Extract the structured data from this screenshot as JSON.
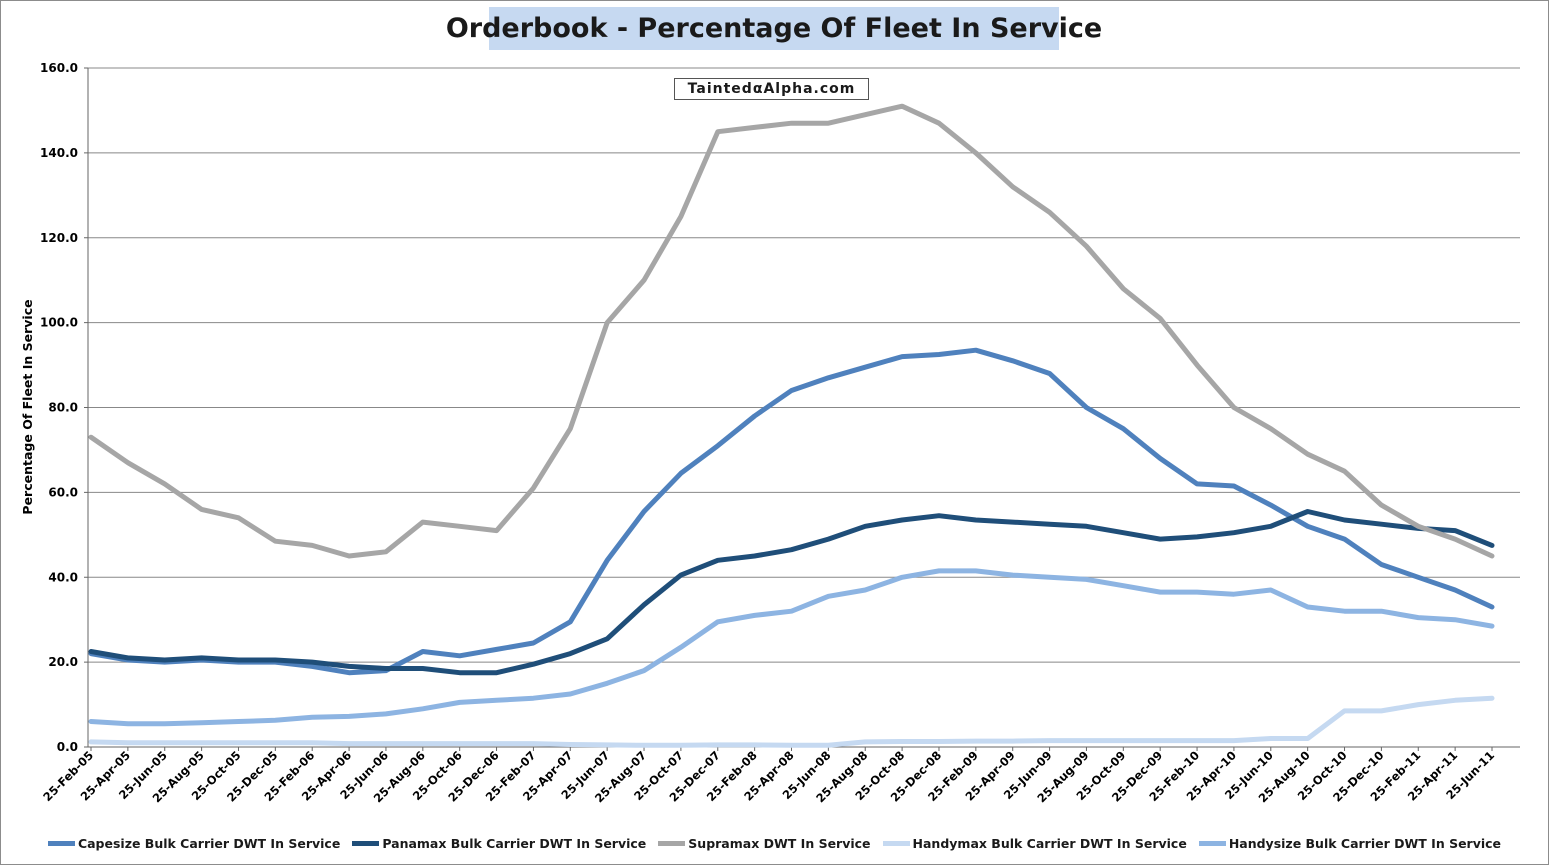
{
  "window": {
    "title": "Orderbook - Percentage Of Fleet In Service",
    "watermark": "TaintedαAlpha.com"
  },
  "chart_data": {
    "type": "line",
    "title": "Orderbook - Percentage Of Fleet In Service",
    "xlabel": "",
    "ylabel": "Percentage Of Fleet In Service",
    "ylim": [
      0,
      160
    ],
    "yticks": [
      "0.0",
      "20.0",
      "40.0",
      "60.0",
      "80.0",
      "100.0",
      "120.0",
      "140.0",
      "160.0"
    ],
    "categories": [
      "25-Feb-05",
      "25-Apr-05",
      "25-Jun-05",
      "25-Aug-05",
      "25-Oct-05",
      "25-Dec-05",
      "25-Feb-06",
      "25-Apr-06",
      "25-Jun-06",
      "25-Aug-06",
      "25-Oct-06",
      "25-Dec-06",
      "25-Feb-07",
      "25-Apr-07",
      "25-Jun-07",
      "25-Aug-07",
      "25-Oct-07",
      "25-Dec-07",
      "25-Feb-08",
      "25-Apr-08",
      "25-Jun-08",
      "25-Aug-08",
      "25-Oct-08",
      "25-Dec-08",
      "25-Feb-09",
      "25-Apr-09",
      "25-Jun-09",
      "25-Aug-09",
      "25-Oct-09",
      "25-Dec-09",
      "25-Feb-10",
      "25-Apr-10",
      "25-Jun-10",
      "25-Aug-10",
      "25-Oct-10",
      "25-Dec-10",
      "25-Feb-11",
      "25-Apr-11",
      "25-Jun-11"
    ],
    "grid": true,
    "legend_position": "bottom",
    "series": [
      {
        "name": "Capesize Bulk Carrier DWT In Service",
        "color": "#4f81bd",
        "values": [
          22,
          20.5,
          20,
          20.5,
          20,
          20,
          19,
          17.5,
          18,
          22.5,
          21.5,
          23,
          24.5,
          29.5,
          44,
          55.5,
          64.5,
          71,
          78,
          84,
          87,
          89.5,
          92,
          92.5,
          93.5,
          91,
          88,
          80,
          75,
          68,
          62,
          61.5,
          57,
          52,
          49,
          43,
          40,
          37,
          33
        ]
      },
      {
        "name": "Panamax Bulk Carrier DWT In Service",
        "color": "#1f4e79",
        "values": [
          22.5,
          21,
          20.5,
          21,
          20.5,
          20.5,
          20,
          19,
          18.5,
          18.5,
          17.5,
          17.5,
          19.5,
          22,
          25.5,
          33.5,
          40.5,
          44,
          45,
          46.5,
          49,
          52,
          53.5,
          54.5,
          53.5,
          53,
          52.5,
          52,
          50.5,
          49,
          49.5,
          50.5,
          52,
          55.5,
          53.5,
          52.5,
          51.5,
          51,
          47.5
        ]
      },
      {
        "name": "Supramax DWT In Service",
        "color": "#a6a6a6",
        "values": [
          73,
          67,
          62,
          56,
          54,
          48.5,
          47.5,
          45,
          46,
          53,
          52,
          51,
          61,
          75,
          100,
          110,
          125,
          145,
          146,
          147,
          147,
          149,
          151,
          147,
          140,
          132,
          126,
          118,
          108,
          101,
          90,
          80,
          75,
          69,
          65,
          57,
          52,
          49,
          45
        ]
      },
      {
        "name": "Handymax Bulk Carrier DWT In Service",
        "color": "#c5d9f1",
        "values": [
          1.2,
          1,
          1,
          1,
          1,
          1,
          1,
          0.8,
          0.8,
          0.8,
          0.8,
          0.8,
          0.8,
          0.6,
          0.5,
          0.4,
          0.4,
          0.5,
          0.5,
          0.4,
          0.4,
          1.2,
          1.3,
          1.3,
          1.4,
          1.4,
          1.5,
          1.5,
          1.5,
          1.5,
          1.5,
          1.5,
          2,
          2,
          8.5,
          8.5,
          10,
          11,
          11.5
        ]
      },
      {
        "name": "Handysize Bulk Carrier DWT In Service",
        "color": "#8db4e2",
        "values": [
          6,
          5.5,
          5.5,
          5.7,
          6,
          6.3,
          7,
          7.2,
          7.8,
          9,
          10.5,
          11,
          11.5,
          12.5,
          15,
          18,
          23.5,
          29.5,
          31,
          32,
          35.5,
          37,
          40,
          41.5,
          41.5,
          40.5,
          40,
          39.5,
          38,
          36.5,
          36.5,
          36,
          37,
          33,
          32,
          32,
          30.5,
          30,
          28.5
        ]
      }
    ]
  }
}
